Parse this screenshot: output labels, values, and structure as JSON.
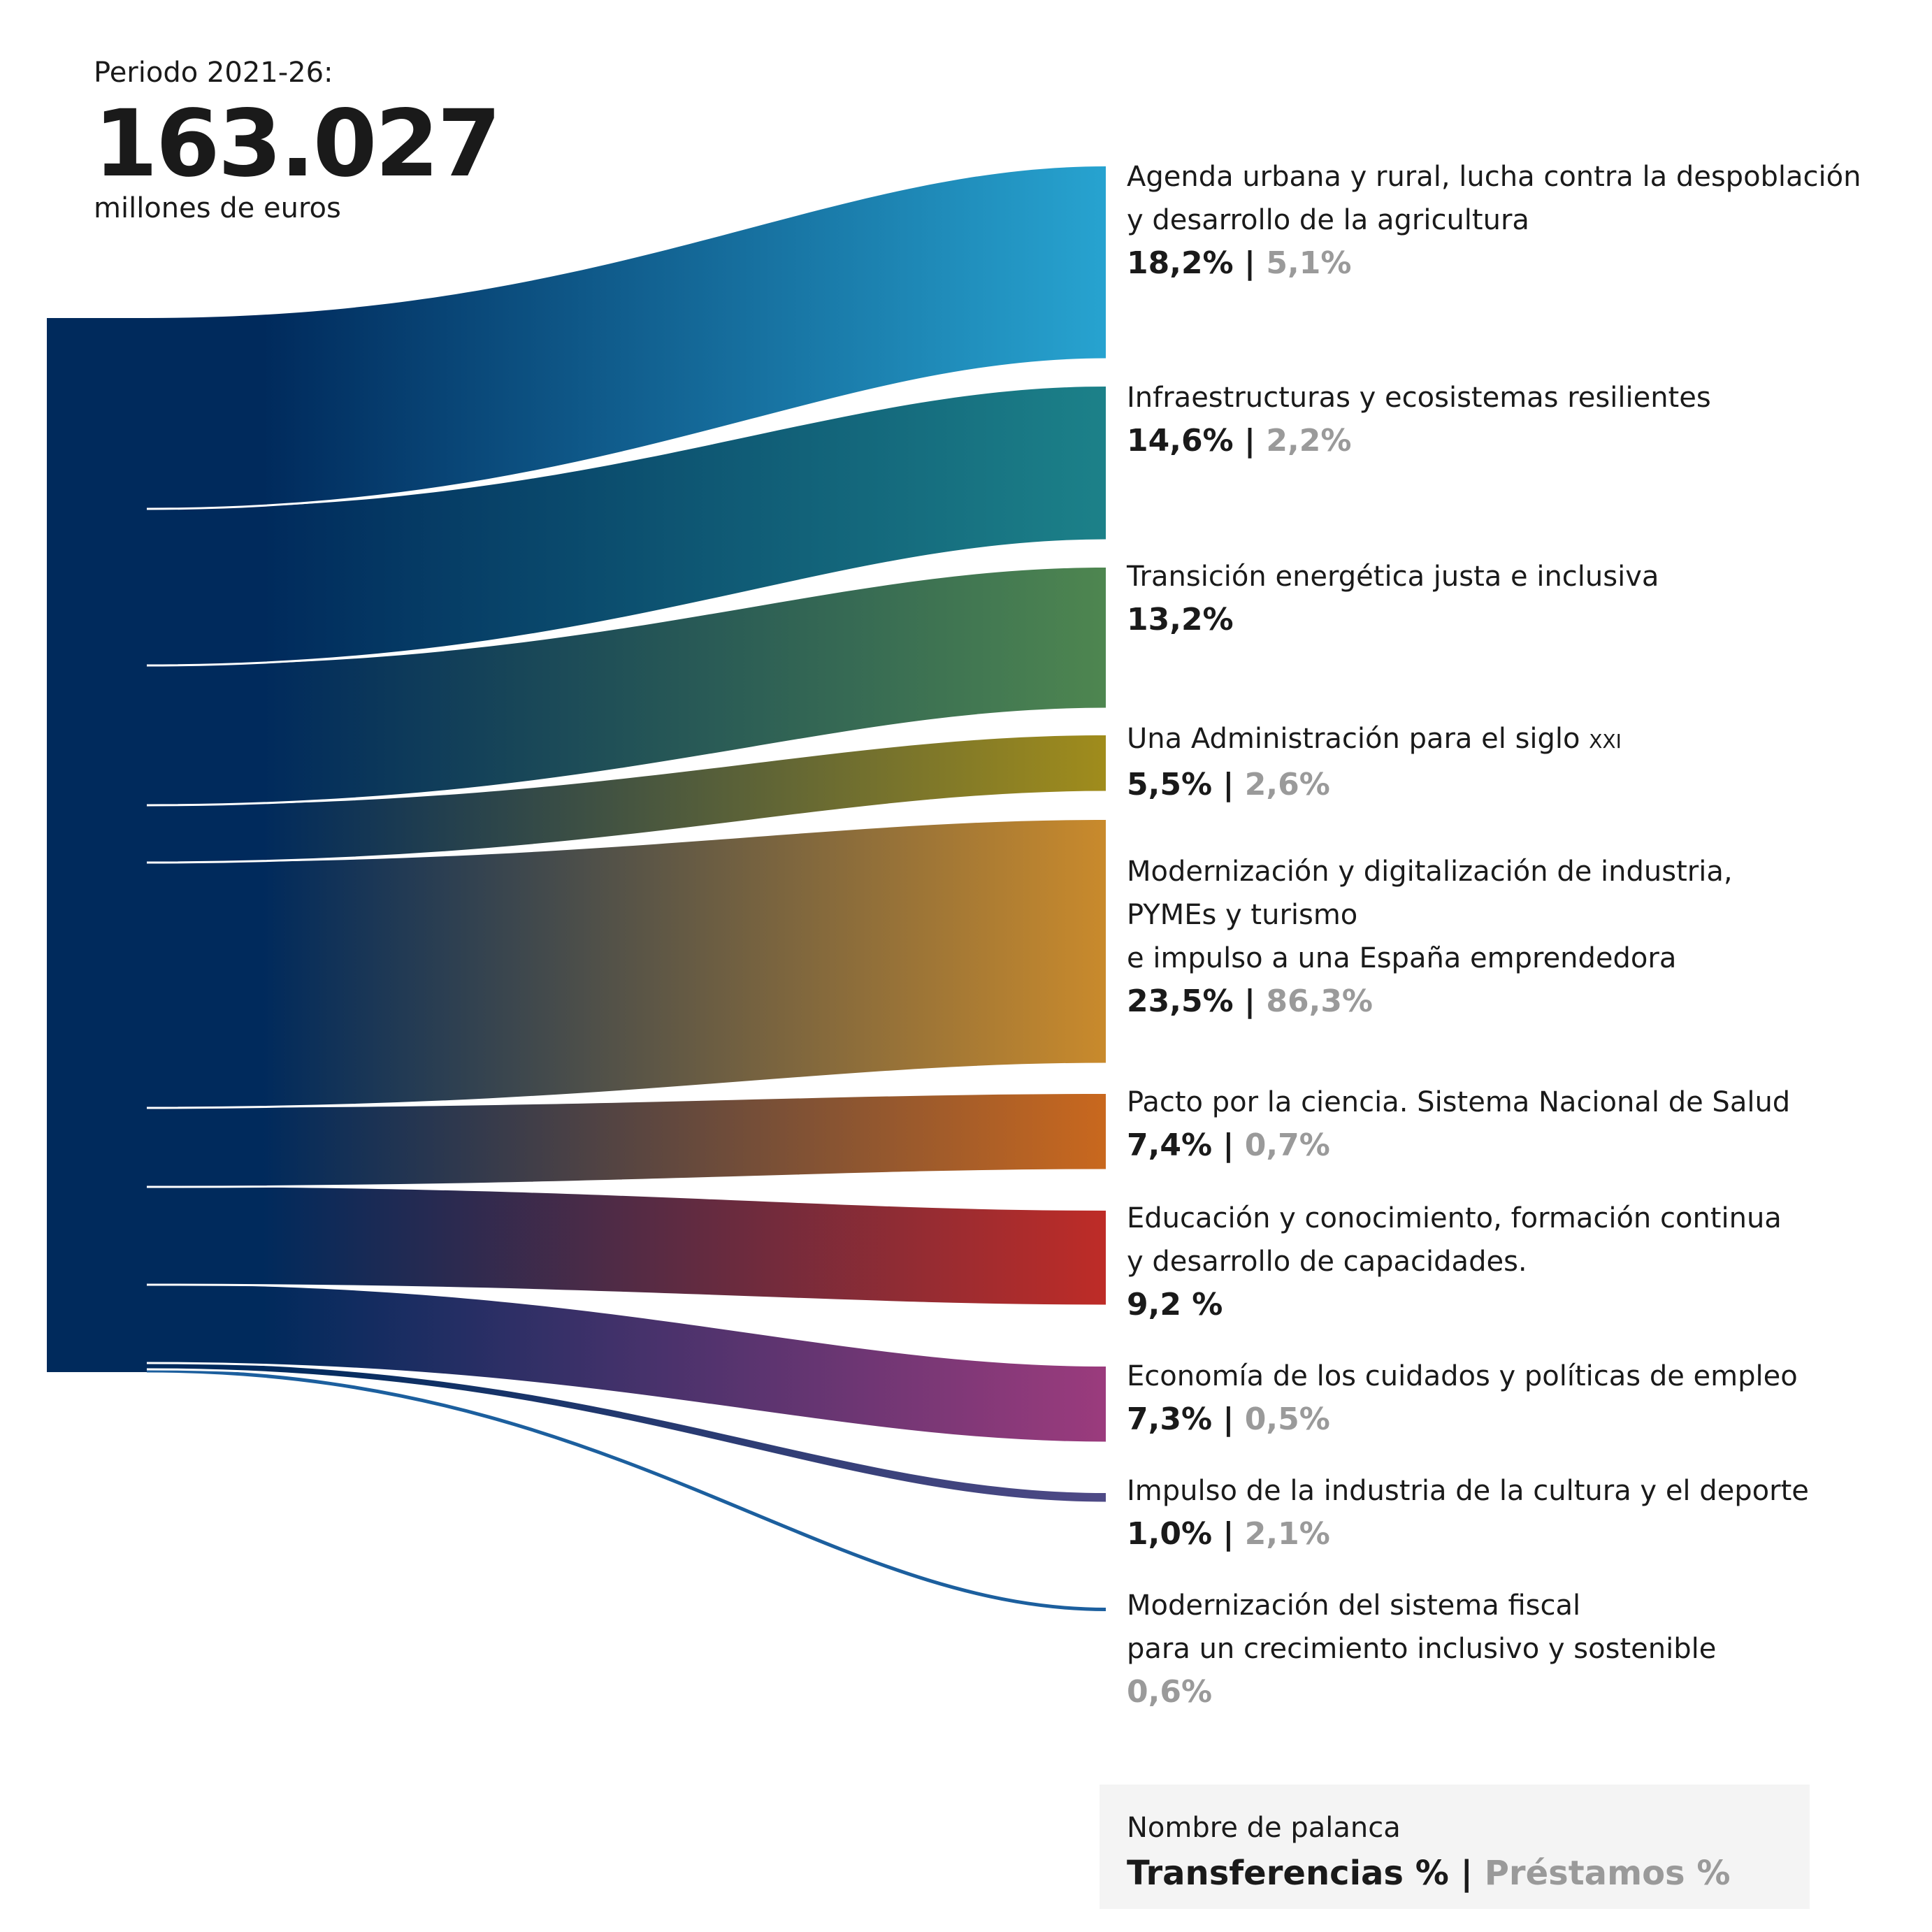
{
  "header": {
    "period": "Periodo 2021-26:",
    "total": "163.027",
    "unit": "millones de euros"
  },
  "chart_data": {
    "type": "sankey",
    "source": "163.027",
    "flows": [
      {
        "name": "Agenda urbana y rural, lucha contra la despoblación\ny desarrollo de la agricultura",
        "transfer": "18,2%",
        "loan": "5,1%",
        "color": "#27a3d0"
      },
      {
        "name": "Infraestructuras y ecosistemas resilientes",
        "transfer": "14,6%",
        "loan": "2,2%",
        "color": "#1c8189"
      },
      {
        "name": "Transición energética justa e inclusiva",
        "transfer": "13,2%",
        "loan": "",
        "color": "#4e8650"
      },
      {
        "name": "Una Administración para el siglo ",
        "name_smallcaps": "XXI",
        "transfer": "5,5%",
        "loan": "2,6%",
        "color": "#a08c1c"
      },
      {
        "name": "Modernización y digitalización de industria,\nPYMEs y turismo\ne impulso a una España emprendedora",
        "transfer": "23,5%",
        "loan": "86,3%",
        "color": "#c98a2c"
      },
      {
        "name": "Pacto por la ciencia. Sistema Nacional de Salud",
        "transfer": "7,4%",
        "loan": "0,7%",
        "color": "#c9681e"
      },
      {
        "name": "Educación y conocimiento, formación continua\ny desarrollo de capacidades.",
        "transfer": "9,2 %",
        "loan": "",
        "color": "#be2c27"
      },
      {
        "name": "Economía de los cuidados y políticas de empleo",
        "transfer": "7,3%",
        "loan": "0,5%",
        "color": "#9b3b7d"
      },
      {
        "name": "Impulso de la industria de la cultura y el deporte",
        "transfer": "1,0%",
        "loan": "2,1%",
        "color": "#4f4a86"
      },
      {
        "name": "Modernización del sistema fiscal\npara un crecimiento inclusivo y sostenible",
        "transfer": "",
        "loan": "0,6%",
        "color": "#1c5f9e"
      }
    ],
    "source_color": "#002a5c"
  },
  "legend": {
    "title": "Nombre de palanca",
    "transfer_label": "Transferencias %",
    "separator": "|",
    "loan_label": "Préstamos %"
  }
}
